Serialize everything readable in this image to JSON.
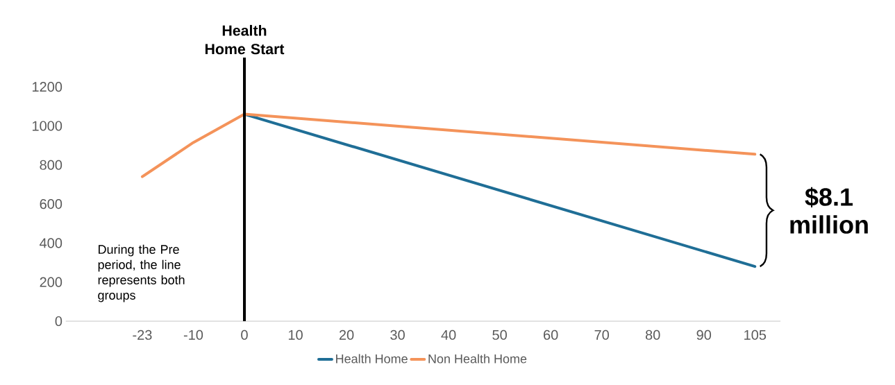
{
  "chart_data": {
    "type": "line",
    "categories": [
      "-23",
      "-10",
      "0",
      "10",
      "20",
      "30",
      "40",
      "50",
      "60",
      "70",
      "80",
      "90",
      "105"
    ],
    "series": [
      {
        "name": "Health Home",
        "color": "#1f6e96",
        "values": [
          null,
          null,
          1060,
          null,
          null,
          null,
          null,
          null,
          null,
          null,
          null,
          null,
          280
        ]
      },
      {
        "name": "Non Health Home",
        "color": "#f4935a",
        "values": [
          740,
          915,
          1060,
          null,
          null,
          null,
          null,
          null,
          null,
          null,
          null,
          null,
          855
        ]
      }
    ],
    "ylim": [
      0,
      1350
    ],
    "yticks": [
      0,
      200,
      400,
      600,
      800,
      1000,
      1200
    ],
    "ref_lines": [
      {
        "axis": "x",
        "value": "0",
        "label": "Health Home Start",
        "color": "#000000"
      }
    ],
    "annotations": [
      "During the Pre period, the line represents both groups",
      "$8.1 million"
    ],
    "legend": "bottom"
  }
}
